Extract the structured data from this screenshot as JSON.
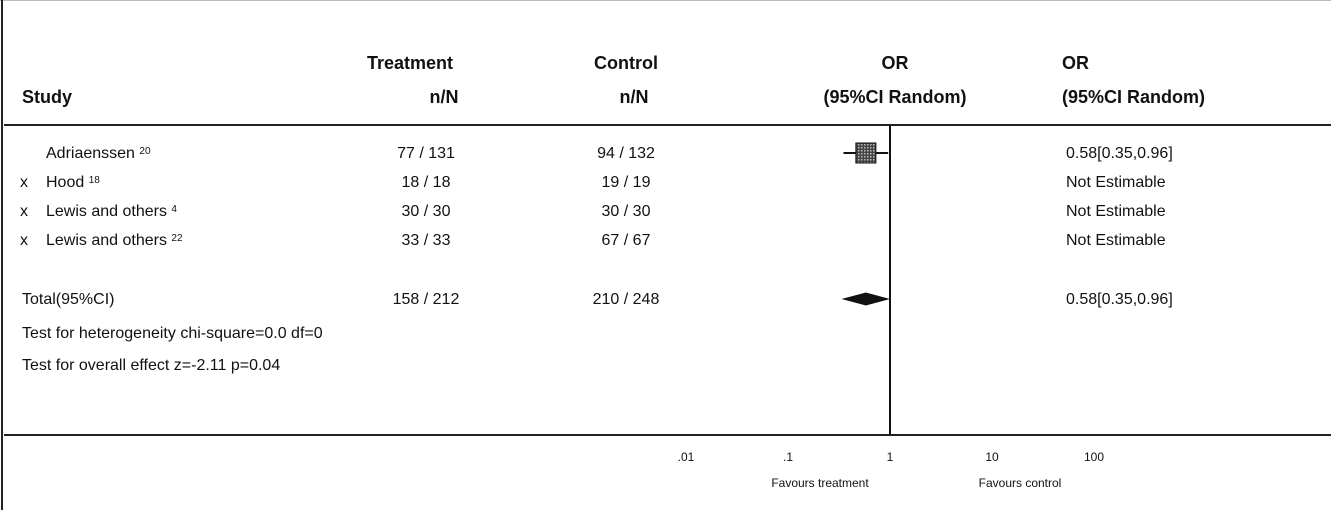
{
  "headers": {
    "study": "Study",
    "treatment": [
      "Treatment",
      "n/N"
    ],
    "control": [
      "Control",
      "n/N"
    ],
    "or_plot": [
      "OR",
      "(95%CI Random)"
    ],
    "or_value": [
      "OR",
      "(95%CI Random)"
    ]
  },
  "studies": [
    {
      "marker": "",
      "name": "Adriaenssen",
      "ref": "20",
      "treatment": "77 / 131",
      "control": "94 / 132",
      "or": "0.58[0.35,0.96]"
    },
    {
      "marker": "x",
      "name": "Hood",
      "ref": "18",
      "treatment": "18 / 18",
      "control": "19 / 19",
      "or": "Not Estimable"
    },
    {
      "marker": "x",
      "name": "Lewis and others",
      "ref": "4",
      "treatment": "30 / 30",
      "control": "30 / 30",
      "or": "Not Estimable"
    },
    {
      "marker": "x",
      "name": "Lewis and others",
      "ref": "22",
      "treatment": "33 / 33",
      "control": "67 / 67",
      "or": "Not Estimable"
    }
  ],
  "total": {
    "label": "Total(95%CI)",
    "treatment": "158 / 212",
    "control": "210 / 248",
    "or": "0.58[0.35,0.96]"
  },
  "tests": [
    "Test for heterogeneity chi-square=0.0  df=0",
    "Test for overall effect  z=-2.11  p=0.04"
  ],
  "chart_data": {
    "type": "forest",
    "scale": "log",
    "xlim": [
      0.01,
      100
    ],
    "ticks": [
      {
        "value": 0.01,
        "label": ".01"
      },
      {
        "value": 0.1,
        "label": ".1"
      },
      {
        "value": 1,
        "label": "1"
      },
      {
        "value": 10,
        "label": "10"
      },
      {
        "value": 100,
        "label": "100"
      }
    ],
    "reference_line": 1,
    "xlabel_left": "Favours treatment",
    "xlabel_right": "Favours control",
    "points": [
      {
        "study": "Adriaenssen",
        "or": 0.58,
        "ci": [
          0.35,
          0.96
        ],
        "row": 0
      },
      {
        "study": "Total",
        "or": 0.58,
        "ci": [
          0.35,
          0.96
        ],
        "row": "total",
        "shape": "diamond"
      }
    ]
  }
}
